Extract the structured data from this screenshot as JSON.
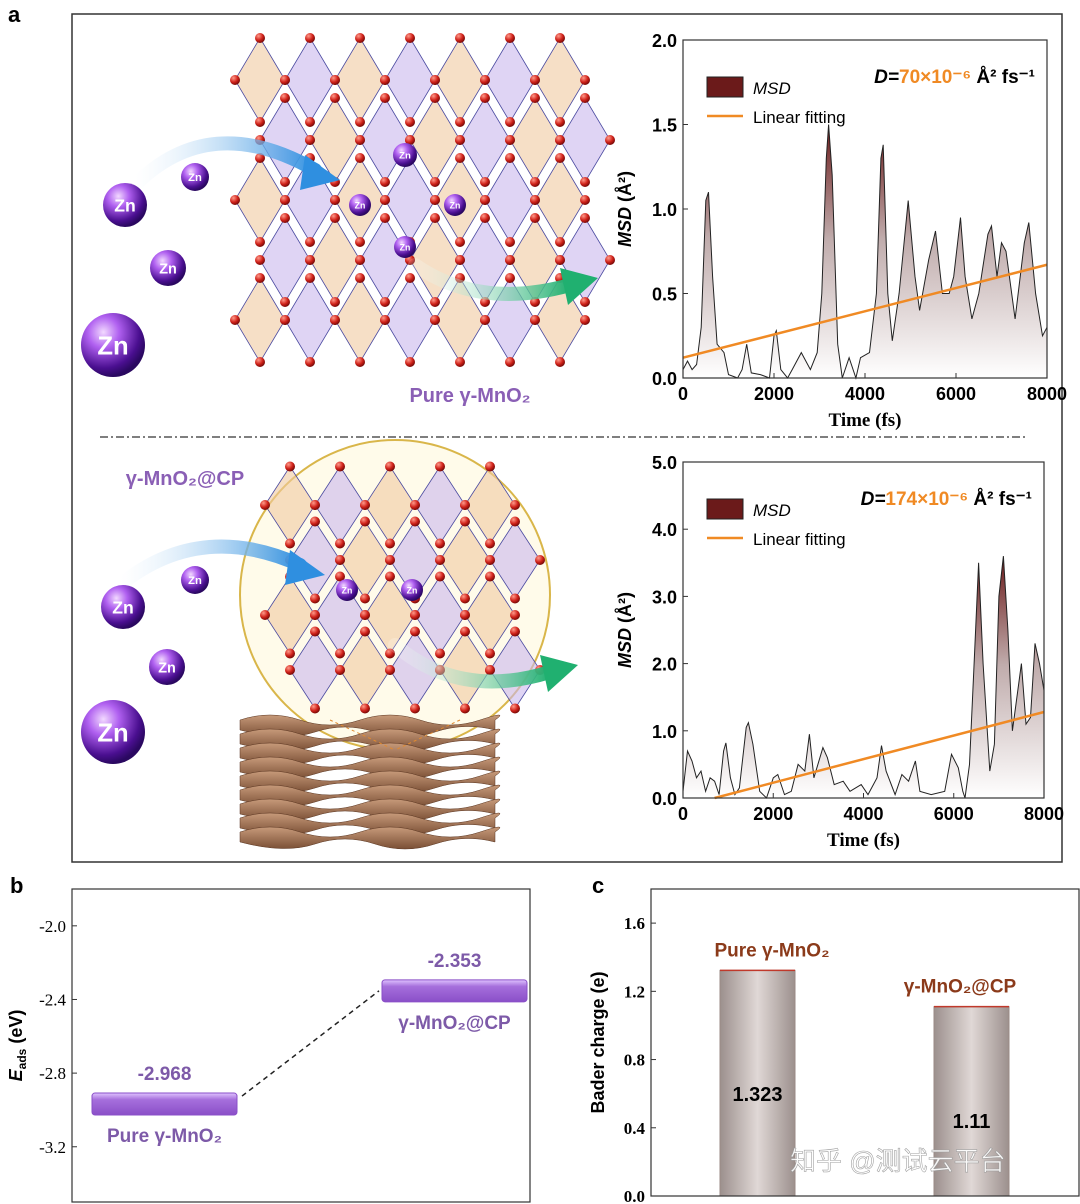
{
  "panel_labels": {
    "a": "a",
    "b": "b",
    "c": "c"
  },
  "illustration": {
    "zn_label": "Zn",
    "top_label": "Pure γ-MnO₂",
    "bottom_label": "γ-MnO₂@CP",
    "colors": {
      "zn": "#6a1fb0",
      "label": "#8a5fb5",
      "arrow_blue": "#3aa0e8",
      "arrow_green": "#2bb673",
      "o_atom": "#c8201a"
    }
  },
  "watermark": "知乎 @测试云平台",
  "chart_data": [
    {
      "id": "msd_pure",
      "type": "area",
      "xlabel": "Time (fs)",
      "ylabel": "MSD (Å²)",
      "ylabel_italic": "MSD",
      "ylabel_unit": " (Å²)",
      "xlim": [
        0,
        8000
      ],
      "ylim": [
        0,
        2.0
      ],
      "xticks": [
        0,
        2000,
        4000,
        6000,
        8000
      ],
      "yticks": [
        "0.0",
        "0.5",
        "1.0",
        "1.5",
        "2.0"
      ],
      "legend": [
        "MSD",
        "Linear fitting"
      ],
      "legend_position": "top-left",
      "annotation": {
        "prefix": "D=",
        "value": "70×10⁻⁶",
        "unit": " Å² fs⁻¹"
      },
      "colors": {
        "fill_top": "#6b1a1a",
        "line": "#222222",
        "fit": "#f08a24",
        "value": "#f08a24"
      },
      "series": [
        {
          "name": "MSD",
          "x": [
            0,
            100,
            200,
            300,
            400,
            500,
            560,
            650,
            750,
            900,
            1000,
            1200,
            1300,
            1400,
            1500,
            1700,
            1900,
            2000,
            2050,
            2150,
            2300,
            2400,
            2600,
            2800,
            2950,
            3050,
            3150,
            3200,
            3280,
            3400,
            3500,
            3650,
            3800,
            3900,
            4100,
            4250,
            4350,
            4400,
            4500,
            4600,
            4750,
            4950,
            5100,
            5200,
            5400,
            5550,
            5700,
            5850,
            5950,
            6100,
            6200,
            6350,
            6500,
            6700,
            6780,
            6900,
            7000,
            7100,
            7300,
            7500,
            7600,
            7750,
            7900,
            8000
          ],
          "y": [
            0.05,
            0.1,
            0.05,
            0.08,
            0.3,
            1.05,
            1.1,
            0.6,
            0.2,
            0.15,
            0.02,
            0.0,
            0.05,
            0.2,
            0.03,
            0.02,
            0.0,
            0.25,
            0.28,
            0.05,
            0.0,
            0.05,
            0.15,
            0.05,
            0.15,
            0.5,
            1.3,
            1.5,
            1.2,
            0.2,
            0.0,
            0.12,
            0.0,
            0.12,
            0.15,
            0.5,
            1.3,
            1.38,
            0.5,
            0.22,
            0.5,
            1.05,
            0.6,
            0.4,
            0.7,
            0.87,
            0.5,
            0.5,
            0.6,
            0.95,
            0.6,
            0.35,
            0.5,
            0.85,
            0.9,
            0.6,
            0.8,
            0.75,
            0.35,
            0.8,
            0.92,
            0.5,
            0.25,
            0.3
          ]
        },
        {
          "name": "Linear fitting",
          "x": [
            0,
            8000
          ],
          "y": [
            0.12,
            0.67
          ]
        }
      ]
    },
    {
      "id": "msd_cp",
      "type": "area",
      "xlabel": "Time (fs)",
      "ylabel": "MSD (Å²)",
      "ylabel_italic": "MSD",
      "ylabel_unit": " (Å²)",
      "xlim": [
        0,
        8000
      ],
      "ylim": [
        0,
        5.0
      ],
      "xticks": [
        0,
        2000,
        4000,
        6000,
        8000
      ],
      "yticks": [
        "0.0",
        "1.0",
        "2.0",
        "3.0",
        "4.0",
        "5.0"
      ],
      "legend": [
        "MSD",
        "Linear fitting"
      ],
      "legend_position": "top-left",
      "annotation": {
        "prefix": "D=",
        "value": "174×10⁻⁶",
        "unit": " Å² fs⁻¹"
      },
      "colors": {
        "fill_top": "#6b1a1a",
        "line": "#222222",
        "fit": "#f08a24",
        "value": "#f08a24"
      },
      "series": [
        {
          "name": "MSD",
          "x": [
            0,
            100,
            200,
            300,
            400,
            500,
            600,
            700,
            800,
            900,
            950,
            1050,
            1150,
            1250,
            1400,
            1450,
            1550,
            1700,
            1850,
            2000,
            2100,
            2250,
            2400,
            2550,
            2700,
            2800,
            2900,
            3100,
            3200,
            3350,
            3550,
            3700,
            3950,
            4100,
            4300,
            4400,
            4500,
            4700,
            4850,
            5000,
            5150,
            5250,
            5500,
            5800,
            5950,
            6100,
            6200,
            6250,
            6350,
            6450,
            6550,
            6650,
            6800,
            6900,
            7000,
            7100,
            7200,
            7300,
            7500,
            7600,
            7700,
            7800,
            7900,
            8000
          ],
          "y": [
            0.1,
            0.7,
            0.55,
            0.3,
            0.4,
            0.1,
            0.3,
            0.25,
            0.05,
            0.7,
            0.82,
            0.3,
            0.05,
            0.15,
            1.05,
            1.12,
            0.8,
            0.1,
            0.0,
            0.3,
            0.35,
            0.05,
            0.1,
            0.5,
            0.4,
            0.95,
            0.3,
            0.75,
            0.6,
            0.2,
            0.25,
            0.1,
            0.2,
            0.05,
            0.3,
            0.78,
            0.4,
            0.05,
            0.35,
            0.25,
            0.55,
            0.1,
            0.05,
            0.1,
            0.65,
            0.45,
            0.1,
            0.0,
            0.5,
            2.0,
            3.5,
            2.0,
            0.4,
            0.8,
            3.0,
            3.6,
            2.5,
            1.0,
            2.0,
            1.1,
            1.2,
            2.3,
            2.0,
            1.6
          ]
        },
        {
          "name": "Linear fitting",
          "x": [
            700,
            8000
          ],
          "y": [
            0.0,
            1.28
          ]
        }
      ]
    },
    {
      "id": "adsorption",
      "type": "bar",
      "ylabel": "Eads (eV)",
      "ylabel_main": "E",
      "ylabel_sub": "ads",
      "ylabel_unit": " (eV)",
      "ylim": [
        -3.5,
        -1.8
      ],
      "yticks": [
        "-2.0",
        "-2.4",
        "-2.8",
        "-3.2"
      ],
      "ytick_values": [
        -2.0,
        -2.4,
        -2.8,
        -3.2
      ],
      "categories": [
        "Pure γ-MnO₂",
        "γ-MnO₂@CP"
      ],
      "values": [
        -2.968,
        -2.353
      ],
      "value_labels": [
        "-2.968",
        "-2.353"
      ],
      "colors": {
        "bar": "#a66fdc",
        "label": "#7d5aa8",
        "connector": "#222222"
      }
    },
    {
      "id": "bader",
      "type": "bar",
      "ylabel": "Bader charge (e)",
      "ylim": [
        0,
        1.8
      ],
      "yticks": [
        "0.0",
        "0.4",
        "0.8",
        "1.2",
        "1.6"
      ],
      "ytick_values": [
        0,
        0.4,
        0.8,
        1.2,
        1.6
      ],
      "categories": [
        "Pure γ-MnO₂",
        "γ-MnO₂@CP"
      ],
      "values": [
        1.323,
        1.11
      ],
      "value_labels": [
        "1.323",
        "1.11"
      ],
      "colors": {
        "bar": "#b8aeab",
        "edge": "#c0392b",
        "label": "#8b3a1a"
      }
    }
  ]
}
